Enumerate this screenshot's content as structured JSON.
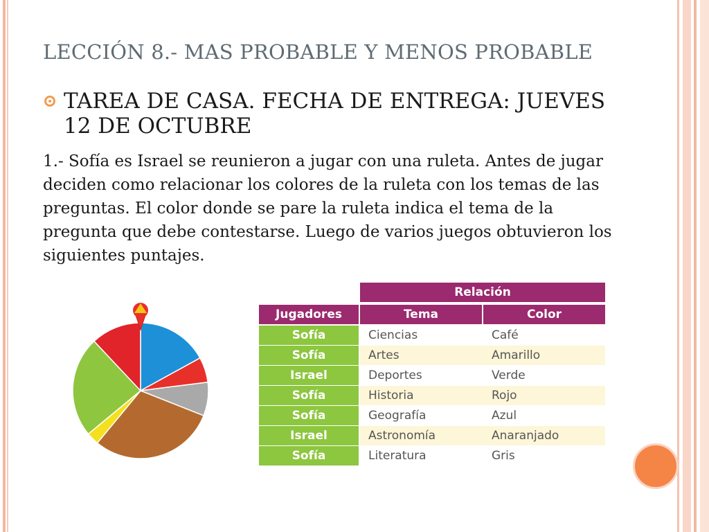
{
  "slide": {
    "title": "LECCIÓN 8.- MAS PROBABLE Y MENOS PROBABLE",
    "bullet": "TAREA DE CASA. FECHA DE ENTREGA: JUEVES 12 DE OCTUBRE",
    "paragraph": "1.- Sofía es Israel se reunieron a jugar con una ruleta. Antes de jugar deciden como relacionar los colores de la ruleta con los temas de las preguntas. El color donde se pare la ruleta indica el tema de la pregunta que debe contestarse. Luego de varios juegos obtuvieron los siguientes puntajes."
  },
  "table": {
    "group_header": "Relación",
    "headers": {
      "players": "Jugadores",
      "tema": "Tema",
      "color": "Color"
    },
    "rows": [
      {
        "player": "Sofía",
        "tema": "Ciencias",
        "color": "Café"
      },
      {
        "player": "Sofía",
        "tema": "Artes",
        "color": "Amarillo"
      },
      {
        "player": "Israel",
        "tema": "Deportes",
        "color": "Verde"
      },
      {
        "player": "Sofía",
        "tema": "Historia",
        "color": "Rojo"
      },
      {
        "player": "Sofía",
        "tema": "Geografía",
        "color": "Azul"
      },
      {
        "player": "Israel",
        "tema": "Astronomía",
        "color": "Anaranjado"
      },
      {
        "player": "Sofía",
        "tema": "Literatura",
        "color": "Gris"
      }
    ]
  },
  "spinner": {
    "sectors": [
      {
        "color": "#1e90d8",
        "fraction": 0.17
      },
      {
        "color": "#e8302a",
        "fraction": 0.06
      },
      {
        "color": "#a9a9a9",
        "fraction": 0.08
      },
      {
        "color": "#b46a2e",
        "fraction": 0.3
      },
      {
        "color": "#f5e020",
        "fraction": 0.03
      },
      {
        "color": "#8ec63f",
        "fraction": 0.24
      },
      {
        "color": "#e0242a",
        "fraction": 0.12
      }
    ]
  },
  "colors": {
    "accent": "#f29c50",
    "table_header": "#9b2a6e",
    "player_cell": "#8dc63f",
    "title": "#5f6b73"
  }
}
